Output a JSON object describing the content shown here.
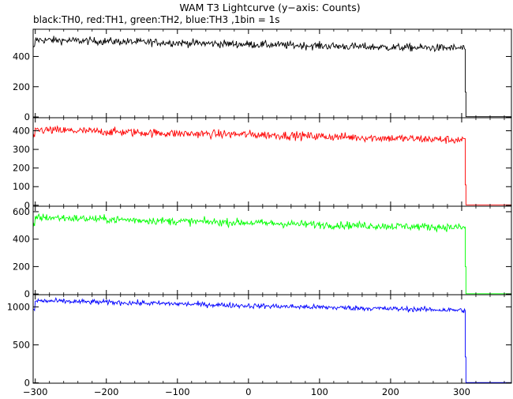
{
  "chart_data": {
    "type": "line",
    "title": "WAM T3 Lightcurve (y−axis: Counts)",
    "subtitle": "black:TH0, red:TH1, green:TH2, blue:TH3 ,1bin = 1s",
    "x_ticks": [
      -300,
      -200,
      -100,
      0,
      100,
      200,
      300
    ],
    "xlim": [
      -303,
      370
    ],
    "panels": [
      {
        "name": "TH0",
        "color": "#000000",
        "ylim": [
          -5,
          580
        ],
        "y_ticks": [
          0,
          200,
          400
        ],
        "trend_points": [
          [
            -300,
            510
          ],
          [
            -200,
            500
          ],
          [
            -100,
            490
          ],
          [
            0,
            480
          ],
          [
            100,
            470
          ],
          [
            200,
            460
          ],
          [
            303,
            455
          ]
        ],
        "noise_amplitude": 18,
        "drop_x": 305,
        "drop_value": 165,
        "tail_value": 2
      },
      {
        "name": "TH1",
        "color": "#ff0000",
        "ylim": [
          -5,
          470
        ],
        "y_ticks": [
          0,
          100,
          200,
          300,
          400
        ],
        "trend_points": [
          [
            -300,
            405
          ],
          [
            -200,
            395
          ],
          [
            -100,
            385
          ],
          [
            0,
            380
          ],
          [
            100,
            370
          ],
          [
            200,
            360
          ],
          [
            303,
            350
          ]
        ],
        "noise_amplitude": 16,
        "drop_x": 305,
        "drop_value": 110,
        "tail_value": 2
      },
      {
        "name": "TH2",
        "color": "#00ff00",
        "ylim": [
          -5,
          640
        ],
        "y_ticks": [
          0,
          200,
          400,
          600
        ],
        "trend_points": [
          [
            -300,
            560
          ],
          [
            -200,
            545
          ],
          [
            -100,
            530
          ],
          [
            0,
            520
          ],
          [
            100,
            505
          ],
          [
            200,
            495
          ],
          [
            303,
            485
          ]
        ],
        "noise_amplitude": 20,
        "drop_x": 305,
        "drop_value": 200,
        "tail_value": 2
      },
      {
        "name": "TH3",
        "color": "#0000ff",
        "ylim": [
          -5,
          1160
        ],
        "y_ticks": [
          0,
          500,
          1000
        ],
        "trend_points": [
          [
            -300,
            1080
          ],
          [
            -200,
            1060
          ],
          [
            -100,
            1040
          ],
          [
            0,
            1015
          ],
          [
            100,
            995
          ],
          [
            200,
            975
          ],
          [
            303,
            955
          ]
        ],
        "noise_amplitude": 24,
        "drop_x": 305,
        "drop_value": 340,
        "tail_value": 3
      }
    ]
  }
}
